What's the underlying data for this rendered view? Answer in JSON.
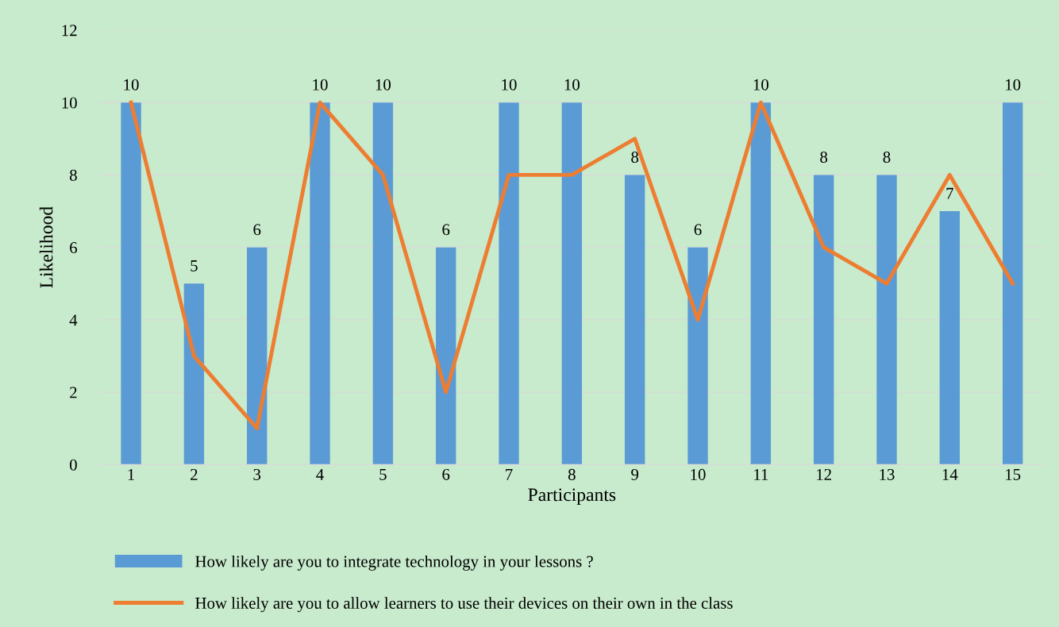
{
  "chart_data": {
    "type": "bar",
    "xlabel": "Participants",
    "ylabel": "Likelihood",
    "categories": [
      "1",
      "2",
      "3",
      "4",
      "5",
      "6",
      "7",
      "8",
      "9",
      "10",
      "11",
      "12",
      "13",
      "14",
      "15"
    ],
    "series": [
      {
        "name": "How likely are you to integrate technology in your lessons ?",
        "color": "#5b9bd5",
        "values": [
          10,
          5,
          6,
          10,
          10,
          6,
          10,
          10,
          8,
          6,
          10,
          8,
          8,
          7,
          10
        ],
        "data_labels": true
      },
      {
        "name": "How likely are you to allow learners to use their devices on their own in the class",
        "type": "line",
        "color": "#ed7d31",
        "values": [
          10,
          3,
          1,
          10,
          8,
          2,
          8,
          8,
          9,
          4,
          10,
          6,
          5,
          8,
          5
        ]
      }
    ],
    "ylim": [
      0,
      12
    ],
    "yticks": [
      0,
      2,
      4,
      6,
      8,
      10,
      12
    ],
    "grid": "y",
    "legend": "bottom",
    "marker": "none",
    "line_style": "solid"
  }
}
